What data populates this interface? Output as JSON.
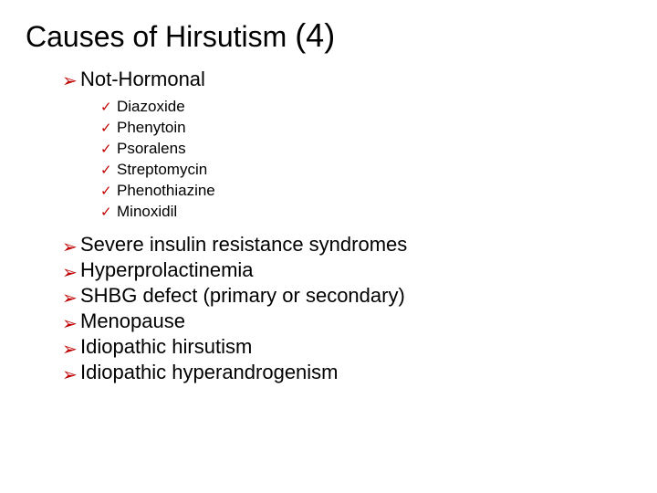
{
  "colors": {
    "background": "#ffffff",
    "text": "#000000",
    "bullet": "#c00000"
  },
  "fonts": {
    "family": "Arial",
    "title_size_pt": 32,
    "title_num_size_pt": 36,
    "level1_size_pt": 22,
    "level2_size_pt": 17
  },
  "bullets": {
    "level1_char": "➢",
    "level2_char": "✓"
  },
  "title": {
    "main": "Causes of Hirsutism ",
    "num": "(4)"
  },
  "section_a": {
    "heading": "Not-Hormonal",
    "items": [
      "Diazoxide",
      "Phenytoin",
      "Psoralens",
      "Streptomycin",
      "Phenothiazine",
      "Minoxidil"
    ]
  },
  "section_b": {
    "items": [
      "Severe insulin resistance syndromes",
      "Hyperprolactinemia",
      "SHBG defect (primary or secondary)",
      "Menopause",
      "Idiopathic hirsutism",
      "Idiopathic hyperandrogenism"
    ]
  }
}
